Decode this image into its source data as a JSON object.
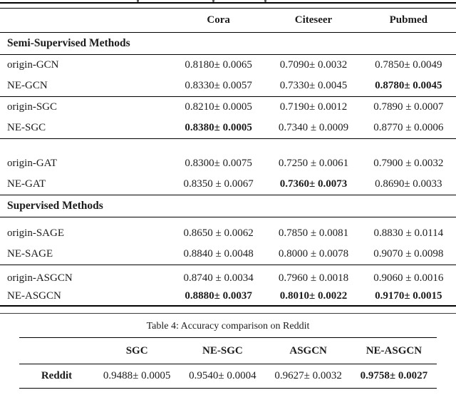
{
  "colors": {
    "background": "#ffffff",
    "text": "#1c1c1c",
    "rule": "#000000"
  },
  "table3": {
    "columns": [
      "Cora",
      "Citeseer",
      "Pubmed"
    ],
    "sections": [
      {
        "title": "Semi-Supervised Methods",
        "groups": [
          [
            {
              "label": "origin-GCN",
              "values": [
                {
                  "text": "0.8180± 0.0065",
                  "bold": false
                },
                {
                  "text": "0.7090± 0.0032",
                  "bold": false
                },
                {
                  "text": "0.7850± 0.0049",
                  "bold": false
                }
              ]
            },
            {
              "label": "NE-GCN",
              "values": [
                {
                  "text": "0.8330± 0.0057",
                  "bold": false
                },
                {
                  "text": "0.7330± 0.0045",
                  "bold": false
                },
                {
                  "text": "0.8780± 0.0045",
                  "bold": true
                }
              ]
            }
          ],
          [
            {
              "label": "origin-SGC",
              "values": [
                {
                  "text": "0.8210± 0.0005",
                  "bold": false
                },
                {
                  "text": "0.7190± 0.0012",
                  "bold": false
                },
                {
                  "text": "0.7890 ± 0.0007",
                  "bold": false
                }
              ]
            },
            {
              "label": "NE-SGC",
              "values": [
                {
                  "text": "0.8380± 0.0005",
                  "bold": true
                },
                {
                  "text": "0.7340 ± 0.0009",
                  "bold": false
                },
                {
                  "text": "0.8770 ± 0.0006",
                  "bold": false
                }
              ]
            }
          ],
          [
            {
              "label": "origin-GAT",
              "values": [
                {
                  "text": "0.8300± 0.0075",
                  "bold": false
                },
                {
                  "text": "0.7250 ± 0.0061",
                  "bold": false
                },
                {
                  "text": "0.7900 ± 0.0032",
                  "bold": false
                }
              ]
            },
            {
              "label": "NE-GAT",
              "values": [
                {
                  "text": "0.8350 ± 0.0067",
                  "bold": false
                },
                {
                  "text": "0.7360± 0.0073",
                  "bold": true
                },
                {
                  "text": "0.8690± 0.0033",
                  "bold": false
                }
              ]
            }
          ]
        ]
      },
      {
        "title": "Supervised Methods",
        "groups": [
          [
            {
              "label": "origin-SAGE",
              "values": [
                {
                  "text": "0.8650 ± 0.0062",
                  "bold": false
                },
                {
                  "text": "0.7850 ± 0.0081",
                  "bold": false
                },
                {
                  "text": "0.8830 ± 0.0114",
                  "bold": false
                }
              ]
            },
            {
              "label": "NE-SAGE",
              "values": [
                {
                  "text": "0.8840 ± 0.0048",
                  "bold": false
                },
                {
                  "text": "0.8000 ± 0.0078",
                  "bold": false
                },
                {
                  "text": "0.9070 ± 0.0098",
                  "bold": false
                }
              ]
            }
          ],
          [
            {
              "label": "origin-ASGCN",
              "values": [
                {
                  "text": "0.8740 ± 0.0034",
                  "bold": false
                },
                {
                  "text": "0.7960 ± 0.0018",
                  "bold": false
                },
                {
                  "text": "0.9060 ± 0.0016",
                  "bold": false
                }
              ]
            },
            {
              "label": "NE-ASGCN",
              "values": [
                {
                  "text": "0.8880± 0.0037",
                  "bold": true
                },
                {
                  "text": "0.8010± 0.0022",
                  "bold": true
                },
                {
                  "text": "0.9170± 0.0015",
                  "bold": true
                }
              ]
            }
          ]
        ]
      }
    ]
  },
  "table4": {
    "caption": "Table 4: Accuracy comparison on Reddit",
    "columns": [
      "SGC",
      "NE-SGC",
      "ASGCN",
      "NE-ASGCN"
    ],
    "rows": [
      {
        "label": "Reddit",
        "values": [
          {
            "text": "0.9488± 0.0005",
            "bold": false
          },
          {
            "text": "0.9540± 0.0004",
            "bold": false
          },
          {
            "text": "0.9627± 0.0032",
            "bold": false
          },
          {
            "text": "0.9758± 0.0027",
            "bold": true
          }
        ]
      }
    ]
  }
}
